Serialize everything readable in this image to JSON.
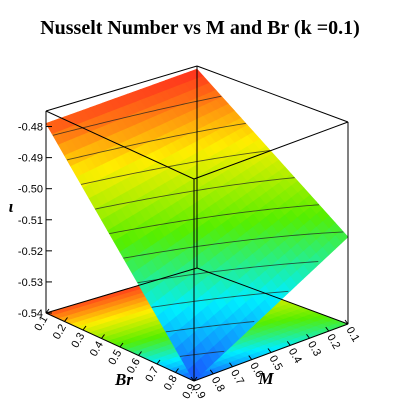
{
  "chart_data": {
    "type": "surface3d",
    "title": "Nusselt Number vs M and Br (k =0.1)",
    "xlabel": "Br",
    "ylabel": "M",
    "zlabel": "ι",
    "x_ticks": [
      "0.1",
      "0.2",
      "0.3",
      "0.4",
      "0.5",
      "0.6",
      "0.7",
      "0.8",
      "0.9"
    ],
    "y_ticks": [
      "0.1",
      "0.2",
      "0.3",
      "0.4",
      "0.5",
      "0.6",
      "0.7",
      "0.8",
      "0.9"
    ],
    "z_ticks": [
      "-0.48",
      "-0.49",
      "-0.50",
      "-0.51",
      "-0.52",
      "-0.53",
      "-0.54"
    ],
    "xlim": [
      0.1,
      0.9
    ],
    "ylim": [
      0.1,
      0.9
    ],
    "zlim": [
      -0.54,
      -0.475
    ],
    "corner_values": [
      {
        "Br": 0.1,
        "M": 0.9,
        "z": -0.479
      },
      {
        "Br": 0.1,
        "M": 0.1,
        "z": -0.476
      },
      {
        "Br": 0.9,
        "M": 0.1,
        "z": -0.512
      },
      {
        "Br": 0.9,
        "M": 0.9,
        "z": -0.54
      }
    ],
    "colormap": [
      "#ff2020",
      "#ffee00",
      "#55ee00",
      "#00eeff",
      "#1a4dff"
    ],
    "contour_levels": 10,
    "projected_contour_plane": true
  }
}
